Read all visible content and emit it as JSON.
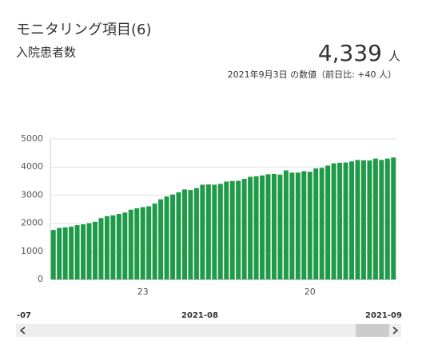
{
  "chart_data": {
    "type": "bar",
    "title": "モニタリング項目(6)",
    "subtitle": "入院患者数",
    "headline": {
      "value": 4339,
      "label": "4,339"
    },
    "unit": "人",
    "note": "2021年9月3日 の数値（前日比: +40 人）",
    "categories": [
      null,
      null,
      null,
      null,
      null,
      null,
      null,
      null,
      null,
      null,
      null,
      null,
      null,
      null,
      null,
      "23",
      null,
      null,
      null,
      null,
      null,
      null,
      null,
      null,
      null,
      null,
      null,
      null,
      null,
      null,
      null,
      null,
      null,
      null,
      null,
      null,
      null,
      null,
      null,
      null,
      null,
      null,
      null,
      "20",
      null,
      null,
      null,
      null,
      null,
      null,
      null,
      null,
      null,
      null,
      null,
      null,
      null,
      null
    ],
    "values": [
      1760,
      1830,
      1850,
      1880,
      1930,
      1960,
      2000,
      2050,
      2180,
      2250,
      2280,
      2330,
      2380,
      2480,
      2530,
      2570,
      2600,
      2700,
      2850,
      2950,
      3020,
      3100,
      3200,
      3180,
      3250,
      3370,
      3380,
      3370,
      3400,
      3480,
      3500,
      3510,
      3580,
      3650,
      3670,
      3700,
      3740,
      3750,
      3730,
      3880,
      3800,
      3800,
      3850,
      3830,
      3950,
      3970,
      4050,
      4130,
      4150,
      4160,
      4200,
      4250,
      4240,
      4230,
      4300,
      4250,
      4299,
      4339
    ],
    "color": "#1f9a48",
    "ylim": [
      0,
      5000
    ],
    "yticks": [
      0,
      1000,
      2000,
      3000,
      4000,
      5000
    ],
    "grid": true,
    "navigator_labels": [
      "-07",
      "2021-08",
      "2021-09"
    ]
  }
}
